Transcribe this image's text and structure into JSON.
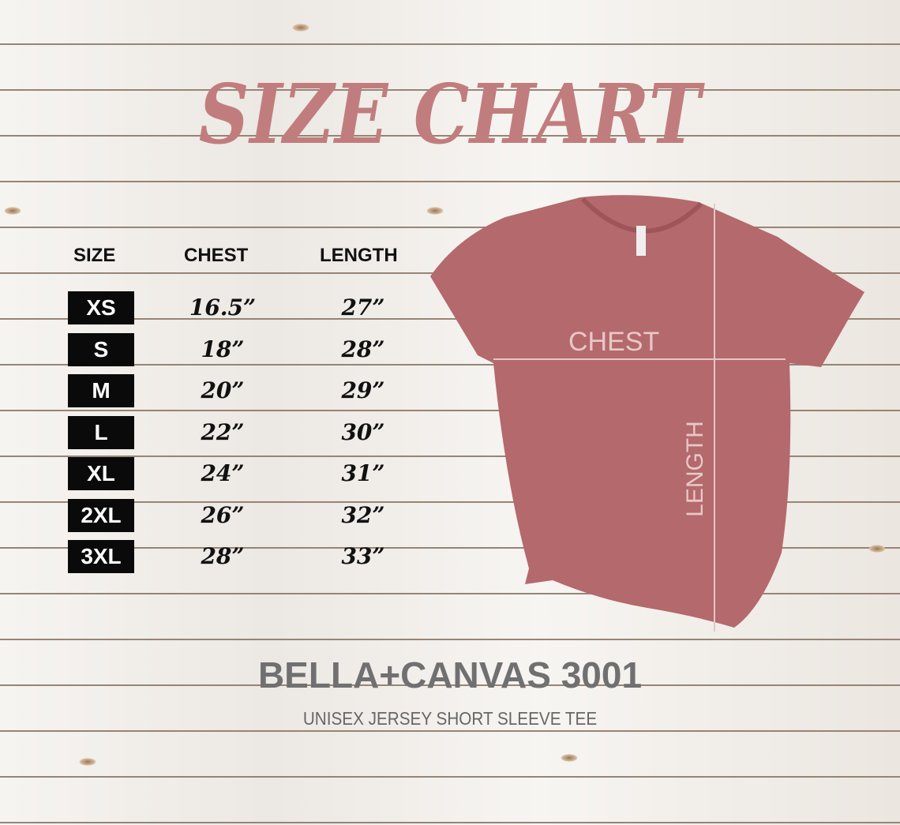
{
  "title": "SIZE CHART",
  "headers": {
    "size": "SIZE",
    "chest": "CHEST",
    "length": "LENGTH"
  },
  "rows": [
    {
      "size": "XS",
      "chest": "16.5”",
      "length": "27”"
    },
    {
      "size": "S",
      "chest": "18”",
      "length": "28”"
    },
    {
      "size": "M",
      "chest": "20”",
      "length": "29”"
    },
    {
      "size": "L",
      "chest": "22”",
      "length": "30”"
    },
    {
      "size": "XL",
      "chest": "24”",
      "length": "31”"
    },
    {
      "size": "2XL",
      "chest": "26”",
      "length": "32”"
    },
    {
      "size": "3XL",
      "chest": "28”",
      "length": "33”"
    }
  ],
  "diagram": {
    "chest_label": "CHEST",
    "length_label": "LENGTH",
    "shirt_color": "#b4696c"
  },
  "brand": "BELLA+CANVAS 3001",
  "product": "UNISEX JERSEY SHORT SLEEVE TEE",
  "colors": {
    "title": "#c17d7d",
    "brand": "#707070"
  }
}
